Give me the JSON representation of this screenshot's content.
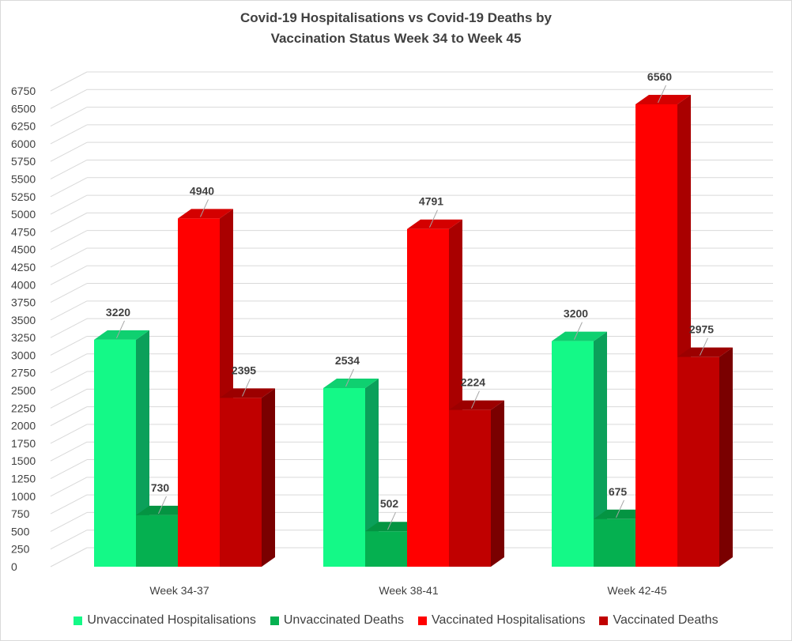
{
  "chart_data": {
    "type": "bar",
    "title_line1": "Covid-19 Hospitalisations  vs Covid-19 Deaths by",
    "title_line2": "Vaccination Status Week 34 to Week 45",
    "categories": [
      "Week 34-37",
      "Week 38-41",
      "Week 42-45"
    ],
    "series": [
      {
        "name": "Unvaccinated Hospitalisations",
        "values": [
          3220,
          2534,
          3200
        ],
        "color": "#14f987",
        "side": "#0ba05a",
        "top": "#0fd070"
      },
      {
        "name": "Unvaccinated Deaths",
        "values": [
          730,
          502,
          675
        ],
        "color": "#05b050",
        "side": "#037a36",
        "top": "#049442"
      },
      {
        "name": "Vaccinated Hospitalisations",
        "values": [
          4940,
          4791,
          6560
        ],
        "color": "#ff0000",
        "side": "#a90000",
        "top": "#d40000"
      },
      {
        "name": "Vaccinated Deaths",
        "values": [
          2395,
          2224,
          2975
        ],
        "color": "#c00000",
        "side": "#7a0000",
        "top": "#9c0000"
      }
    ],
    "ylim": [
      0,
      6750
    ],
    "y_ticks": [
      "0",
      "250",
      "500",
      "750",
      "1000",
      "1250",
      "1500",
      "1750",
      "2000",
      "2250",
      "2500",
      "2750",
      "3000",
      "3250",
      "3500",
      "3750",
      "4000",
      "4250",
      "4500",
      "4750",
      "5000",
      "5250",
      "5500",
      "5750",
      "6000",
      "6250",
      "6500",
      "6750"
    ],
    "grid": true,
    "legend_position": "bottom",
    "three_d": true
  }
}
